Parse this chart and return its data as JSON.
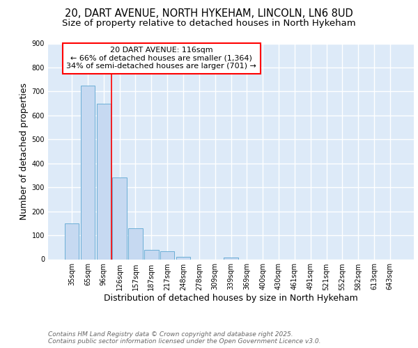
{
  "title": "20, DART AVENUE, NORTH HYKEHAM, LINCOLN, LN6 8UD",
  "subtitle": "Size of property relative to detached houses in North Hykeham",
  "xlabel": "Distribution of detached houses by size in North Hykeham",
  "ylabel": "Number of detached properties",
  "categories": [
    "35sqm",
    "65sqm",
    "96sqm",
    "126sqm",
    "157sqm",
    "187sqm",
    "217sqm",
    "248sqm",
    "278sqm",
    "309sqm",
    "339sqm",
    "369sqm",
    "400sqm",
    "430sqm",
    "461sqm",
    "491sqm",
    "521sqm",
    "552sqm",
    "582sqm",
    "613sqm",
    "643sqm"
  ],
  "values": [
    150,
    725,
    650,
    340,
    130,
    40,
    32,
    10,
    0,
    0,
    8,
    0,
    0,
    0,
    0,
    0,
    0,
    0,
    0,
    0,
    0
  ],
  "bar_color": "#c6d9f1",
  "bar_edge_color": "#6baed6",
  "background_color": "#ddeaf8",
  "grid_color": "#ffffff",
  "red_line_x": 2.5,
  "annotation_text": "20 DART AVENUE: 116sqm\n← 66% of detached houses are smaller (1,364)\n34% of semi-detached houses are larger (701) →",
  "footer_text": "Contains HM Land Registry data © Crown copyright and database right 2025.\nContains public sector information licensed under the Open Government Licence v3.0.",
  "ylim": [
    0,
    900
  ],
  "title_fontsize": 10.5,
  "subtitle_fontsize": 9.5,
  "axis_label_fontsize": 9,
  "tick_fontsize": 7,
  "footer_fontsize": 6.5,
  "annotation_fontsize": 8
}
